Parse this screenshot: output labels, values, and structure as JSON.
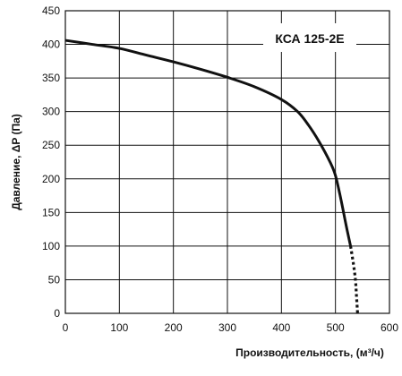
{
  "chart_data": {
    "type": "line",
    "model_label": "КСА 125-2Е",
    "xlabel": "Производительность, (м³/ч)",
    "ylabel": "Давление, ΔP (Па)",
    "xlim": [
      0,
      600
    ],
    "ylim": [
      0,
      450
    ],
    "x_ticks": [
      "0",
      "100",
      "200",
      "300",
      "400",
      "500",
      "600"
    ],
    "y_ticks": [
      "0",
      "50",
      "100",
      "150",
      "200",
      "250",
      "300",
      "350",
      "400",
      "450"
    ],
    "grid": true,
    "line_color": "#111111",
    "series": [
      {
        "style": "solid",
        "points": [
          [
            0,
            406
          ],
          [
            50,
            400
          ],
          [
            100,
            394
          ],
          [
            150,
            384
          ],
          [
            200,
            374
          ],
          [
            250,
            363
          ],
          [
            300,
            351
          ],
          [
            350,
            337
          ],
          [
            400,
            318
          ],
          [
            430,
            300
          ],
          [
            450,
            280
          ],
          [
            470,
            255
          ],
          [
            490,
            225
          ],
          [
            500,
            205
          ],
          [
            510,
            170
          ],
          [
            520,
            130
          ],
          [
            528,
            100
          ]
        ]
      },
      {
        "style": "dotted",
        "points": [
          [
            528,
            100
          ],
          [
            533,
            75
          ],
          [
            537,
            50
          ],
          [
            539,
            25
          ],
          [
            541,
            0
          ]
        ]
      }
    ]
  }
}
